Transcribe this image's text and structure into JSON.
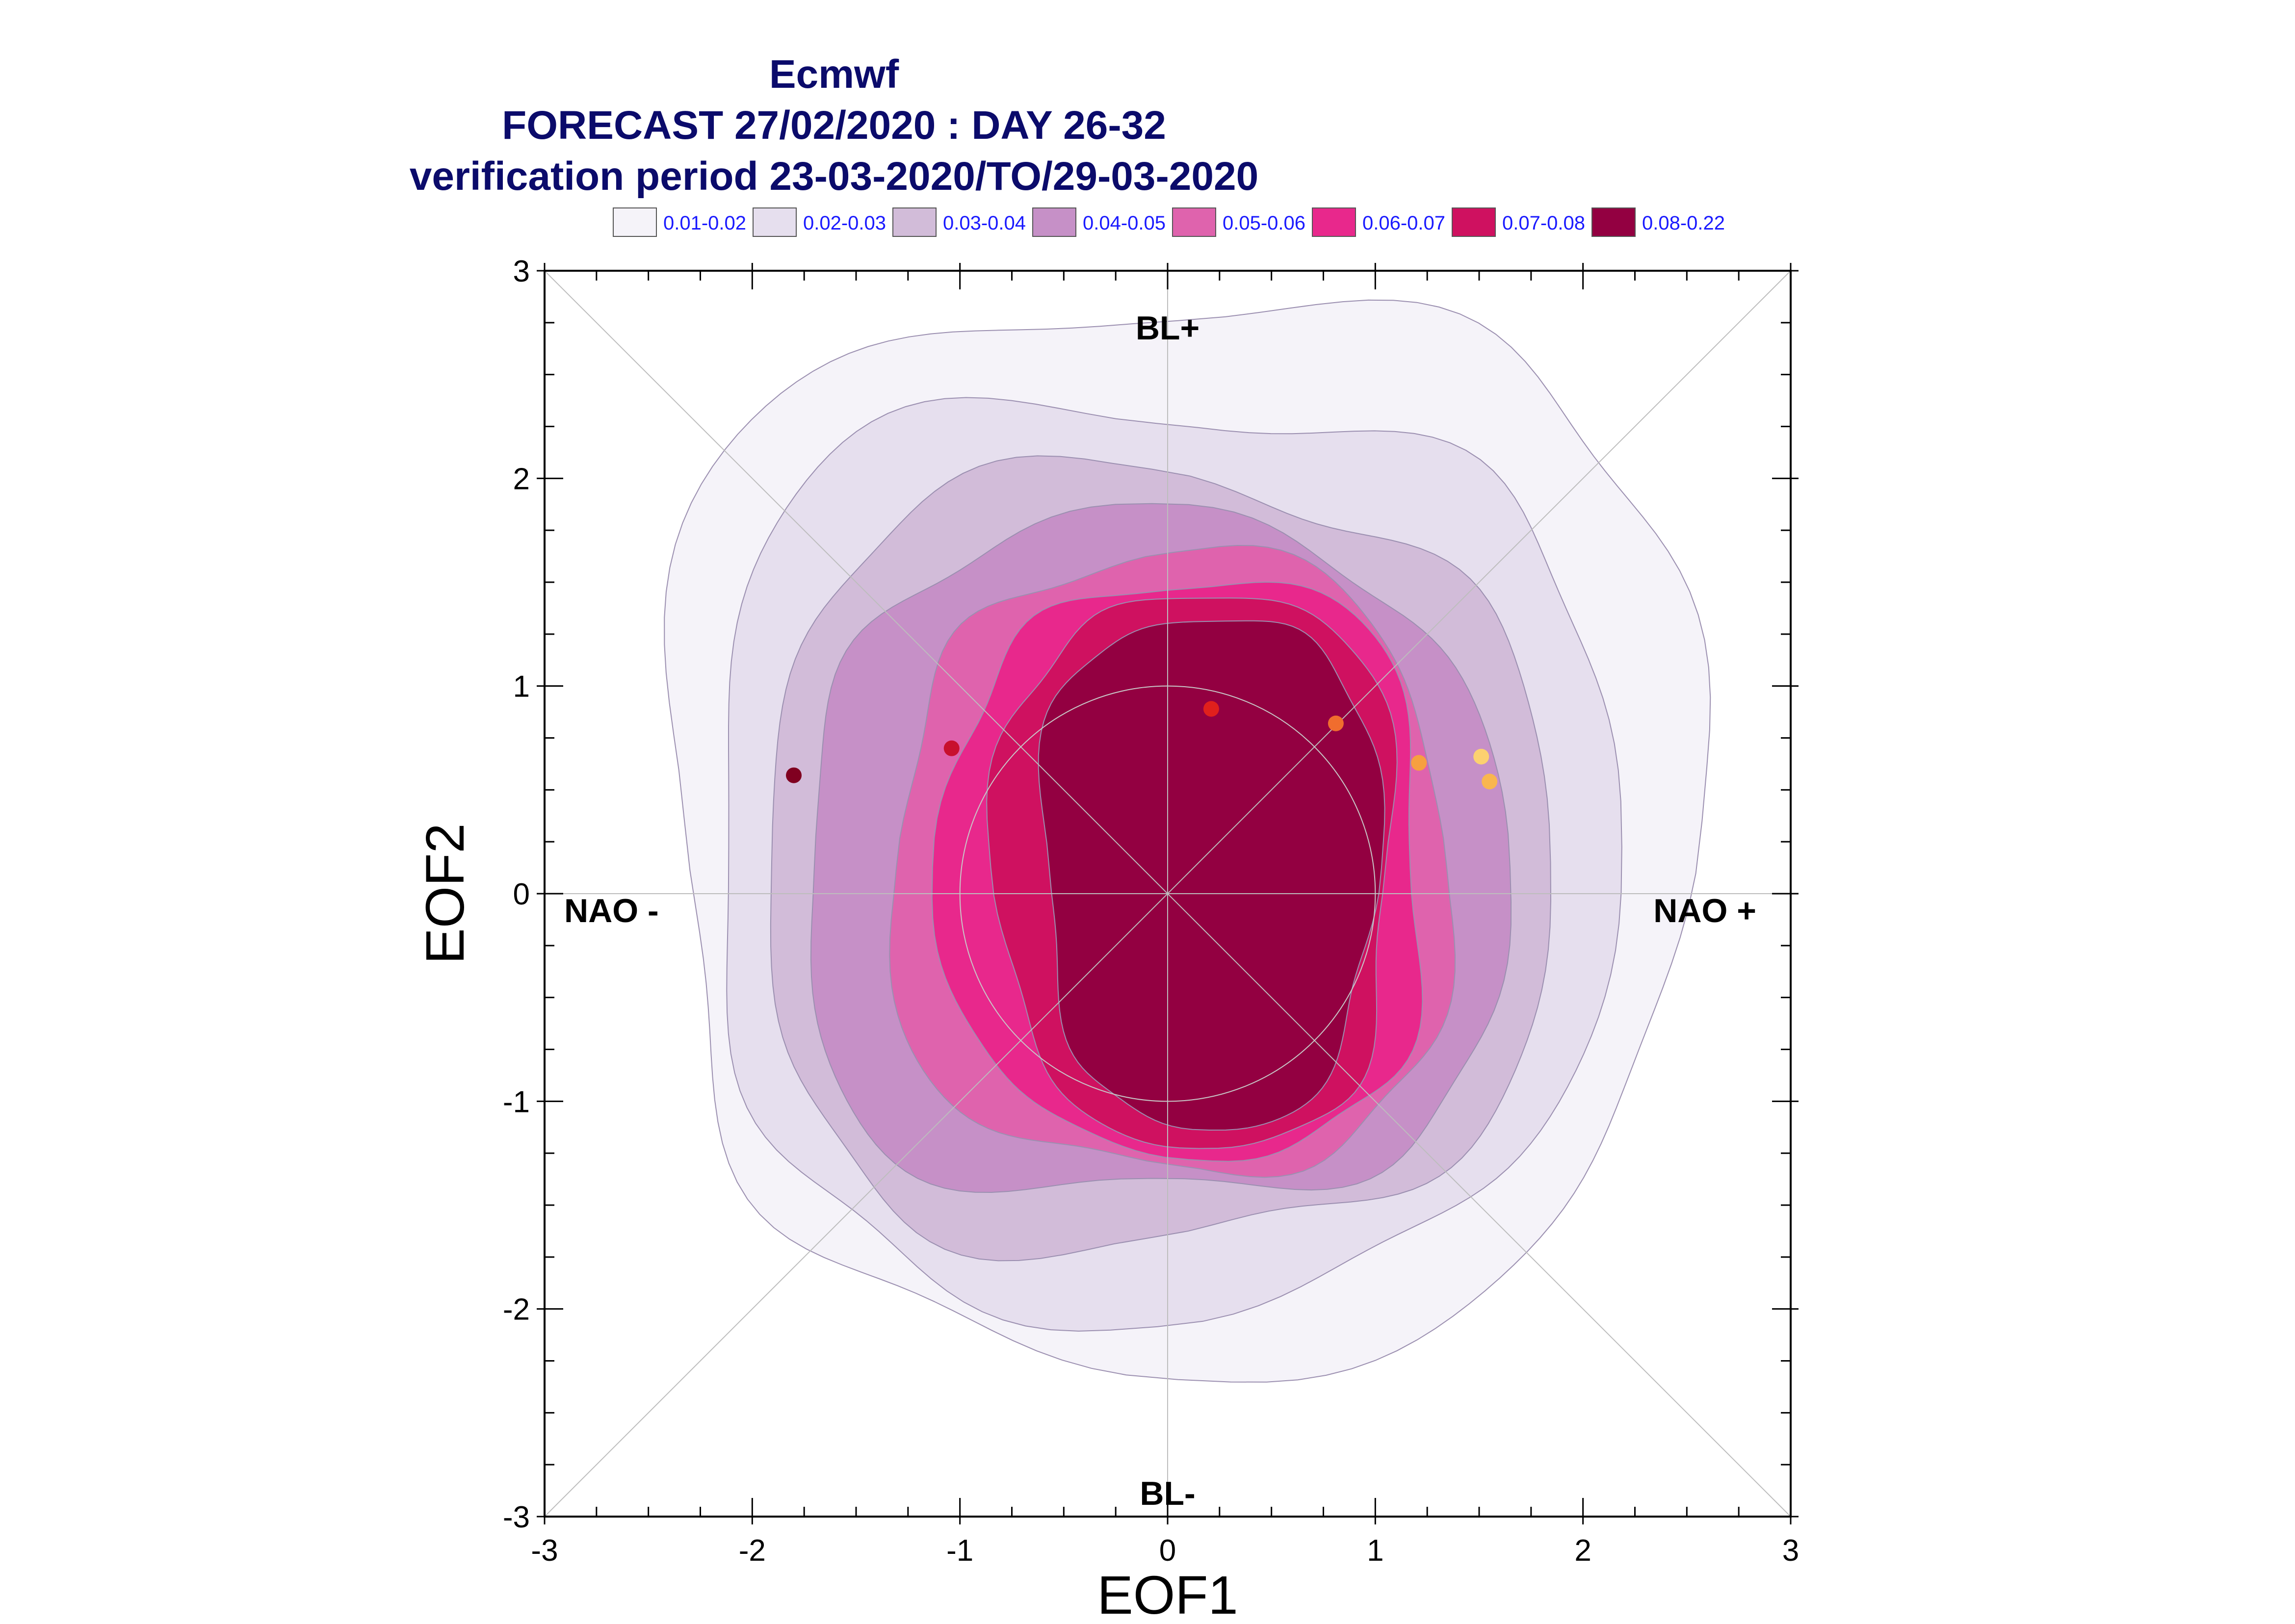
{
  "titles": {
    "line1": "Ecmwf",
    "line2": "FORECAST 27/02/2020 : DAY 26-32",
    "line3": "verification period 23-03-2020/TO/29-03-2020"
  },
  "legend": [
    {
      "label": "0.01-0.02",
      "color": "#f5f3f9"
    },
    {
      "label": "0.02-0.03",
      "color": "#e6dfee"
    },
    {
      "label": "0.03-0.04",
      "color": "#d2bcd9"
    },
    {
      "label": "0.04-0.05",
      "color": "#c690c7"
    },
    {
      "label": "0.05-0.06",
      "color": "#df63ad"
    },
    {
      "label": "0.06-0.07",
      "color": "#e8288c"
    },
    {
      "label": "0.07-0.08",
      "color": "#cf1160"
    },
    {
      "label": "0.08-0.22",
      "color": "#930041"
    }
  ],
  "regime_labels": {
    "top": "BL+",
    "bottom": "BL-",
    "left": "NAO -",
    "right": "NAO +"
  },
  "chart_data": {
    "type": "contour-density",
    "title": "Ecmwf FORECAST 27/02/2020 : DAY 26-32 verification period 23-03-2020/TO/29-03-2020",
    "xlabel": "EOF1",
    "ylabel": "EOF2",
    "xlim": [
      -3,
      3
    ],
    "ylim": [
      -3,
      3
    ],
    "xticks": [
      "-3",
      "-2",
      "-1",
      "0",
      "1",
      "2",
      "3"
    ],
    "yticks": [
      "-3",
      "-2",
      "-1",
      "0",
      "1",
      "2",
      "3"
    ],
    "reference_circle_radius": 1,
    "levels": [
      {
        "range": "0.01-0.02",
        "color": "#f5f3f9",
        "x": [
          -2.4,
          2.5
        ],
        "y": [
          -2.2,
          2.9
        ]
      },
      {
        "range": "0.02-0.03",
        "color": "#e6dfee",
        "x": [
          -2.2,
          2.1
        ],
        "y": [
          -1.95,
          2.4
        ]
      },
      {
        "range": "0.03-0.04",
        "color": "#d2bcd9",
        "x": [
          -1.95,
          1.8
        ],
        "y": [
          -1.7,
          2.0
        ]
      },
      {
        "range": "0.04-0.05",
        "color": "#c690c7",
        "x": [
          -1.75,
          1.6
        ],
        "y": [
          -1.5,
          1.75
        ]
      },
      {
        "range": "0.05-0.06",
        "color": "#df63ad",
        "x": [
          -1.3,
          1.35
        ],
        "y": [
          -1.35,
          1.6
        ]
      },
      {
        "range": "0.06-0.07",
        "color": "#e8288c",
        "x": [
          -1.05,
          1.25
        ],
        "y": [
          -1.25,
          1.5
        ]
      },
      {
        "range": "0.07-0.08",
        "color": "#cf1160",
        "x": [
          -0.8,
          1.1
        ],
        "y": [
          -1.2,
          1.45
        ]
      },
      {
        "range": "0.08-0.22",
        "color": "#930041",
        "x": [
          -0.6,
          1.0
        ],
        "y": [
          -1.1,
          1.35
        ]
      }
    ],
    "points": [
      {
        "x": -1.8,
        "y": 0.57,
        "color": "#800020"
      },
      {
        "x": -1.04,
        "y": 0.7,
        "color": "#c8102e"
      },
      {
        "x": 0.21,
        "y": 0.89,
        "color": "#e0201c"
      },
      {
        "x": 0.81,
        "y": 0.82,
        "color": "#f06d2e"
      },
      {
        "x": 1.21,
        "y": 0.63,
        "color": "#f7a040"
      },
      {
        "x": 1.51,
        "y": 0.66,
        "color": "#fcd170"
      },
      {
        "x": 1.55,
        "y": 0.54,
        "color": "#f9b64e"
      }
    ]
  }
}
